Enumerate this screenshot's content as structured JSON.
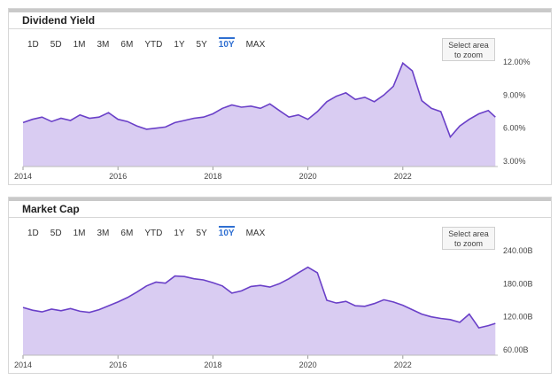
{
  "range_buttons": [
    "1D",
    "5D",
    "1M",
    "3M",
    "6M",
    "YTD",
    "1Y",
    "5Y",
    "10Y",
    "MAX"
  ],
  "active_range": "10Y",
  "zoom_label_line1": "Select area",
  "zoom_label_line2": "to zoom",
  "colors": {
    "line": "#6a40c8",
    "fill": "#d9ccf2",
    "active": "#2f6fd1"
  },
  "chart_data": [
    {
      "type": "area",
      "title": "Dividend Yield",
      "x_ticks": [
        "2014",
        "2016",
        "2018",
        "2020",
        "2022"
      ],
      "y_ticks": [
        "3.00%",
        "6.00%",
        "9.00%",
        "12.00%"
      ],
      "ylim": [
        3,
        12
      ],
      "xlim": [
        2014,
        2024
      ],
      "series": [
        {
          "x": [
            2014.0,
            2014.2,
            2014.4,
            2014.6,
            2014.8,
            2015.0,
            2015.2,
            2015.4,
            2015.6,
            2015.8,
            2016.0,
            2016.2,
            2016.4,
            2016.6,
            2016.8,
            2017.0,
            2017.2,
            2017.4,
            2017.6,
            2017.8,
            2018.0,
            2018.2,
            2018.4,
            2018.6,
            2018.8,
            2019.0,
            2019.2,
            2019.4,
            2019.6,
            2019.8,
            2020.0,
            2020.2,
            2020.4,
            2020.6,
            2020.8,
            2021.0,
            2021.2,
            2021.4,
            2021.6,
            2021.8,
            2022.0,
            2022.2,
            2022.4,
            2022.6,
            2022.8,
            2023.0,
            2023.2,
            2023.4,
            2023.6,
            2023.8,
            2023.95
          ],
          "y": [
            6.5,
            6.8,
            7.0,
            6.6,
            6.9,
            6.7,
            7.2,
            6.9,
            7.0,
            7.4,
            6.8,
            6.6,
            6.2,
            5.9,
            6.0,
            6.1,
            6.5,
            6.7,
            6.9,
            7.0,
            7.3,
            7.8,
            8.1,
            7.9,
            8.0,
            7.8,
            8.2,
            7.6,
            7.0,
            7.2,
            6.8,
            7.5,
            8.4,
            8.9,
            9.2,
            8.6,
            8.8,
            8.4,
            9.0,
            9.8,
            11.9,
            11.2,
            8.5,
            7.8,
            7.5,
            5.2,
            6.2,
            6.8,
            7.3,
            7.6,
            7.0
          ]
        }
      ]
    },
    {
      "type": "area",
      "title": "Market Cap",
      "x_ticks": [
        "2014",
        "2016",
        "2018",
        "2020",
        "2022"
      ],
      "y_ticks": [
        "60.00B",
        "120.00B",
        "180.00B",
        "240.00B"
      ],
      "ylim": [
        60,
        240
      ],
      "xlim": [
        2014,
        2024
      ],
      "series": [
        {
          "x": [
            2014.0,
            2014.2,
            2014.4,
            2014.6,
            2014.8,
            2015.0,
            2015.2,
            2015.4,
            2015.6,
            2015.8,
            2016.0,
            2016.2,
            2016.4,
            2016.6,
            2016.8,
            2017.0,
            2017.2,
            2017.4,
            2017.6,
            2017.8,
            2018.0,
            2018.2,
            2018.4,
            2018.6,
            2018.8,
            2019.0,
            2019.2,
            2019.4,
            2019.6,
            2019.8,
            2020.0,
            2020.2,
            2020.4,
            2020.6,
            2020.8,
            2021.0,
            2021.2,
            2021.4,
            2021.6,
            2021.8,
            2022.0,
            2022.2,
            2022.4,
            2022.6,
            2022.8,
            2023.0,
            2023.2,
            2023.4,
            2023.6,
            2023.8,
            2023.95
          ],
          "y": [
            137,
            132,
            129,
            134,
            131,
            135,
            130,
            128,
            133,
            140,
            147,
            155,
            165,
            176,
            183,
            181,
            194,
            193,
            189,
            187,
            182,
            176,
            163,
            167,
            175,
            177,
            174,
            180,
            189,
            200,
            210,
            200,
            150,
            145,
            148,
            140,
            139,
            144,
            151,
            147,
            141,
            133,
            125,
            120,
            117,
            115,
            110,
            125,
            100,
            104,
            108
          ]
        }
      ]
    }
  ]
}
